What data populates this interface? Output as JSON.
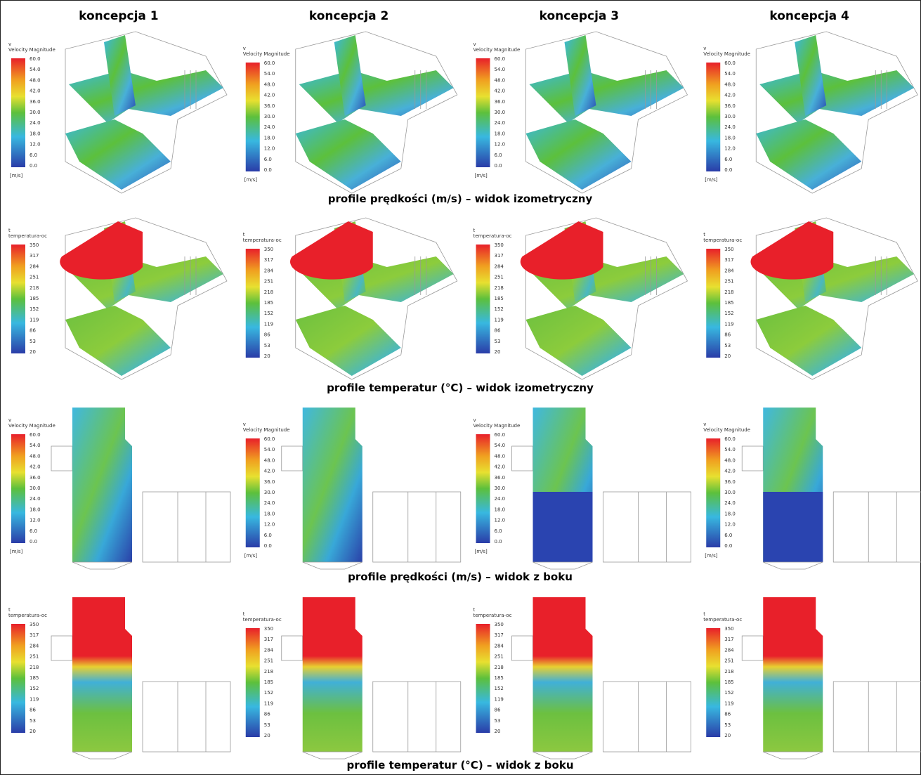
{
  "header": {
    "columns": [
      "koncepcja 1",
      "koncepcja 2",
      "koncepcja 3",
      "koncepcja 4"
    ]
  },
  "rows": [
    {
      "caption": "profile prędkości (m/s) – widok izometryczny",
      "legend": {
        "symbol": "v",
        "title": "Velocity Magnitude",
        "unit": "[m/s]",
        "labels": [
          "60.0",
          "54.0",
          "48.0",
          "42.0",
          "36.0",
          "30.0",
          "24.0",
          "18.0",
          "12.0",
          "6.0",
          "0.0"
        ]
      }
    },
    {
      "caption": "profile temperatur (°C) – widok izometryczny",
      "legend": {
        "symbol": "t",
        "title": "temperatura-oc",
        "labels": [
          "350",
          "317",
          "284",
          "251",
          "218",
          "185",
          "152",
          "119",
          "86",
          "53",
          "20"
        ]
      }
    },
    {
      "caption": "profile prędkości (m/s) – widok z boku",
      "legend": {
        "symbol": "v",
        "title": "Velocity Magnitude",
        "unit": "[m/s]",
        "labels": [
          "60.0",
          "54.0",
          "48.0",
          "42.0",
          "36.0",
          "30.0",
          "24.0",
          "18.0",
          "12.0",
          "6.0",
          "0.0"
        ]
      }
    },
    {
      "caption": "profile temperatur (°C) – widok z boku",
      "legend": {
        "symbol": "t",
        "title": "temperatura-oc",
        "labels": [
          "350",
          "317",
          "284",
          "251",
          "218",
          "185",
          "152",
          "119",
          "86",
          "53",
          "20"
        ]
      }
    }
  ]
}
